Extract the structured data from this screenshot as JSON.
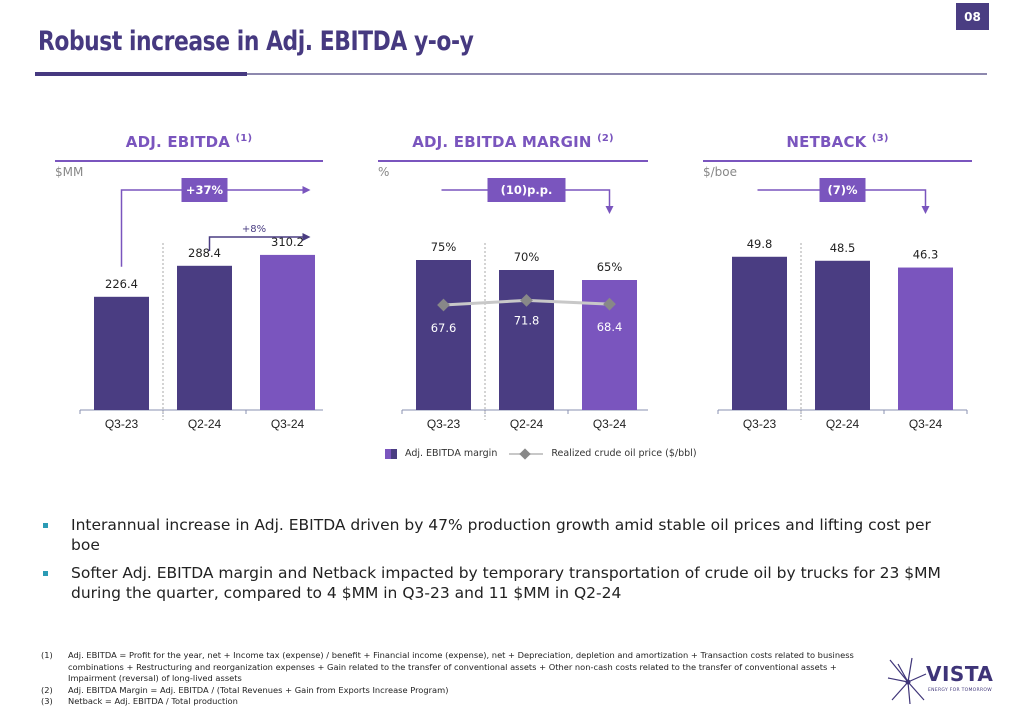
{
  "page_number": "08",
  "title": "Robust increase in Adj. EBITDA y-o-y",
  "colors": {
    "dark_bar": "#4a3d82",
    "accent_bar": "#7a55be",
    "title": "#463980",
    "line": "#c8c8c8",
    "marker": "#888888",
    "bullet": "#2b9bb5"
  },
  "chart_data": [
    {
      "type": "bar",
      "title": "ADJ. EBITDA",
      "footnote_ref": "(1)",
      "unit": "$MM",
      "categories": [
        "Q3-23",
        "Q2-24",
        "Q3-24"
      ],
      "values": [
        226.4,
        288.4,
        310.2
      ],
      "value_labels": [
        "226.4",
        "288.4",
        "310.2"
      ],
      "annotations": [
        {
          "label": "+37%",
          "from": "Q3-23",
          "to": "Q3-24",
          "style": "boxed"
        },
        {
          "label": "+8%",
          "from": "Q2-24",
          "to": "Q3-24",
          "style": "plain"
        }
      ],
      "ylim": [
        0,
        400
      ]
    },
    {
      "type": "bar+line",
      "title": "ADJ. EBITDA MARGIN",
      "footnote_ref": "(2)",
      "unit": "%",
      "categories": [
        "Q3-23",
        "Q2-24",
        "Q3-24"
      ],
      "series": [
        {
          "name": "Adj. EBITDA margin",
          "type": "bar",
          "values": [
            75,
            70,
            65
          ],
          "value_labels": [
            "75%",
            "70%",
            "65%"
          ]
        },
        {
          "name": "Realized crude oil price ($/bbl)",
          "type": "line",
          "values": [
            67.6,
            71.8,
            68.4
          ],
          "value_labels": [
            "67.6",
            "71.8",
            "68.4"
          ]
        }
      ],
      "annotations": [
        {
          "label": "(10)p.p.",
          "from": "Q3-23",
          "to": "Q3-24",
          "style": "boxed"
        }
      ],
      "ylim": [
        0,
        100
      ]
    },
    {
      "type": "bar",
      "title": "NETBACK",
      "footnote_ref": "(3)",
      "unit": "$/boe",
      "categories": [
        "Q3-23",
        "Q2-24",
        "Q3-24"
      ],
      "values": [
        49.8,
        48.5,
        46.3
      ],
      "value_labels": [
        "49.8",
        "48.5",
        "46.3"
      ],
      "annotations": [
        {
          "label": "(7)%",
          "from": "Q3-23",
          "to": "Q3-24",
          "style": "boxed"
        }
      ],
      "ylim": [
        0,
        65
      ]
    }
  ],
  "legend": {
    "bar_label": "Adj. EBITDA margin",
    "line_label": "Realized crude oil price ($/bbl)"
  },
  "bullets": [
    "Interannual increase in Adj. EBITDA driven by 47% production growth amid stable oil prices and lifting cost per boe",
    "Softer Adj. EBITDA margin and Netback impacted by temporary transportation of crude oil by trucks for 23 $MM during the quarter, compared to 4 $MM in Q3-23 and 11 $MM in Q2-24"
  ],
  "footnotes": [
    {
      "num": "(1)",
      "text": "Adj. EBITDA = Profit for the year, net + Income tax (expense) / benefit + Financial income (expense), net + Depreciation, depletion and amortization + Transaction costs related to business combinations + Restructuring and reorganization expenses + Gain related to the transfer of conventional assets + Other non-cash costs related to the transfer of conventional assets + Impairment (reversal) of long-lived assets"
    },
    {
      "num": "(2)",
      "text": "Adj. EBITDA Margin = Adj. EBITDA / (Total Revenues + Gain from Exports Increase Program)"
    },
    {
      "num": "(3)",
      "text": "Netback = Adj. EBITDA / Total production"
    }
  ],
  "logo": {
    "name": "VISTA",
    "tagline": "ENERGY FOR TOMORROW"
  }
}
